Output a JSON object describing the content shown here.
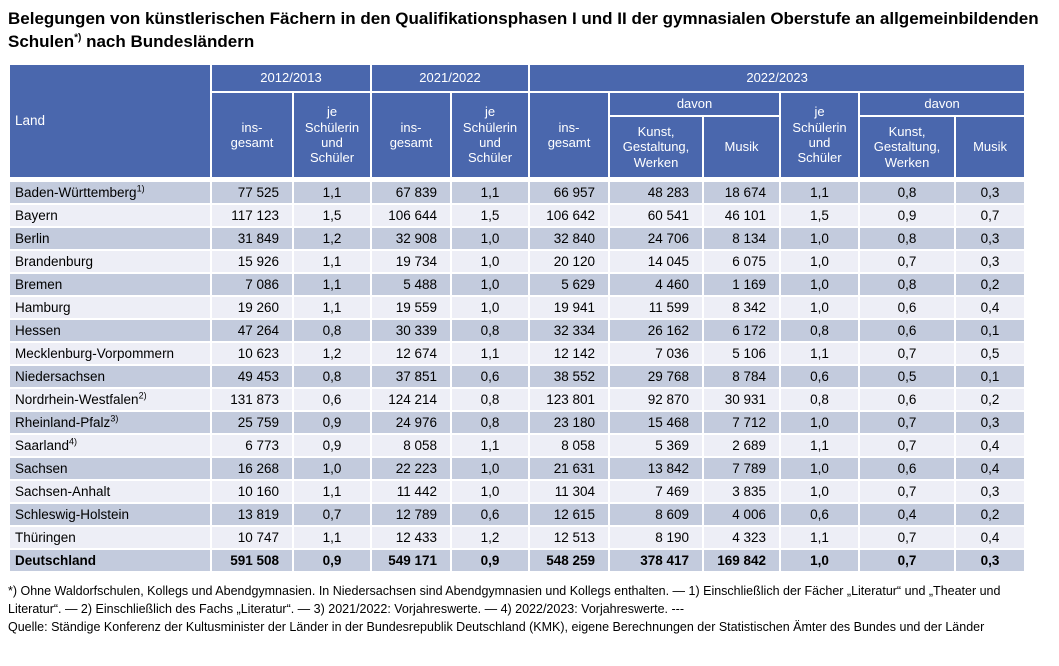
{
  "title": {
    "part1": "Belegungen von künstlerischen Fächern in den Qualifikationsphasen I und II der gymnasialen Oberstufe an allgemeinbildenden Schulen",
    "sup": "*)",
    "part2": " nach Bundesländern"
  },
  "colors": {
    "header_bg": "#4A67AD",
    "row_dark": "#C3CBDD",
    "row_light": "#EDEEF6",
    "header_text": "#FFFFFF"
  },
  "table": {
    "header": {
      "land": "Land",
      "y2012": "2012/2013",
      "y2021": "2021/2022",
      "y2022": "2022/2023",
      "insgesamt": "ins-\ngesamt",
      "je_schueler": "je\nSchülerin\nund\nSchüler",
      "davon": "davon",
      "kunst": "Kunst,\nGestaltung,\nWerken",
      "musik": "Musik"
    },
    "rows": [
      {
        "land": "Baden-Württemberg",
        "sup": "1)",
        "values": [
          "77 525",
          "1,1",
          "67 839",
          "1,1",
          "66 957",
          "48 283",
          "18 674",
          "1,1",
          "0,8",
          "0,3"
        ]
      },
      {
        "land": "Bayern",
        "sup": "",
        "values": [
          "117 123",
          "1,5",
          "106 644",
          "1,5",
          "106 642",
          "60 541",
          "46 101",
          "1,5",
          "0,9",
          "0,7"
        ]
      },
      {
        "land": "Berlin",
        "sup": "",
        "values": [
          "31 849",
          "1,2",
          "32 908",
          "1,0",
          "32 840",
          "24 706",
          "8 134",
          "1,0",
          "0,8",
          "0,3"
        ]
      },
      {
        "land": "Brandenburg",
        "sup": "",
        "values": [
          "15 926",
          "1,1",
          "19 734",
          "1,0",
          "20 120",
          "14 045",
          "6 075",
          "1,0",
          "0,7",
          "0,3"
        ]
      },
      {
        "land": "Bremen",
        "sup": "",
        "values": [
          "7 086",
          "1,1",
          "5 488",
          "1,0",
          "5 629",
          "4 460",
          "1 169",
          "1,0",
          "0,8",
          "0,2"
        ]
      },
      {
        "land": "Hamburg",
        "sup": "",
        "values": [
          "19 260",
          "1,1",
          "19 559",
          "1,0",
          "19 941",
          "11 599",
          "8 342",
          "1,0",
          "0,6",
          "0,4"
        ]
      },
      {
        "land": "Hessen",
        "sup": "",
        "values": [
          "47 264",
          "0,8",
          "30 339",
          "0,8",
          "32 334",
          "26 162",
          "6 172",
          "0,8",
          "0,6",
          "0,1"
        ]
      },
      {
        "land": "Mecklenburg-Vorpommern",
        "sup": "",
        "values": [
          "10 623",
          "1,2",
          "12 674",
          "1,1",
          "12 142",
          "7 036",
          "5 106",
          "1,1",
          "0,7",
          "0,5"
        ]
      },
      {
        "land": "Niedersachsen",
        "sup": "",
        "values": [
          "49 453",
          "0,8",
          "37 851",
          "0,6",
          "38 552",
          "29 768",
          "8 784",
          "0,6",
          "0,5",
          "0,1"
        ]
      },
      {
        "land": "Nordrhein-Westfalen",
        "sup": "2)",
        "values": [
          "131 873",
          "0,6",
          "124 214",
          "0,8",
          "123 801",
          "92 870",
          "30 931",
          "0,8",
          "0,6",
          "0,2"
        ]
      },
      {
        "land": "Rheinland-Pfalz",
        "sup": "3)",
        "values": [
          "25 759",
          "0,9",
          "24 976",
          "0,8",
          "23 180",
          "15 468",
          "7 712",
          "1,0",
          "0,7",
          "0,3"
        ]
      },
      {
        "land": "Saarland",
        "sup": "4)",
        "values": [
          "6 773",
          "0,9",
          "8 058",
          "1,1",
          "8 058",
          "5 369",
          "2 689",
          "1,1",
          "0,7",
          "0,4"
        ]
      },
      {
        "land": "Sachsen",
        "sup": "",
        "values": [
          "16 268",
          "1,0",
          "22 223",
          "1,0",
          "21 631",
          "13 842",
          "7 789",
          "1,0",
          "0,6",
          "0,4"
        ]
      },
      {
        "land": "Sachsen-Anhalt",
        "sup": "",
        "values": [
          "10 160",
          "1,1",
          "11 442",
          "1,0",
          "11 304",
          "7 469",
          "3 835",
          "1,0",
          "0,7",
          "0,3"
        ]
      },
      {
        "land": "Schleswig-Holstein",
        "sup": "",
        "values": [
          "13 819",
          "0,7",
          "12 789",
          "0,6",
          "12 615",
          "8 609",
          "4 006",
          "0,6",
          "0,4",
          "0,2"
        ]
      },
      {
        "land": "Thüringen",
        "sup": "",
        "values": [
          "10 747",
          "1,1",
          "12 433",
          "1,2",
          "12 513",
          "8 190",
          "4 323",
          "1,1",
          "0,7",
          "0,4"
        ]
      }
    ],
    "total_row": {
      "land": "Deutschland",
      "sup": "",
      "values": [
        "591 508",
        "0,9",
        "549 171",
        "0,9",
        "548 259",
        "378 417",
        "169 842",
        "1,0",
        "0,7",
        "0,3"
      ]
    }
  },
  "footnotes": {
    "notes": "*) Ohne Waldorfschulen, Kollegs und Abendgymnasien. In Niedersachsen sind Abendgymnasien und Kollegs enthalten. — 1) Einschließlich der Fächer „Literatur“ und „Theater und Literatur“. — 2) Einschließlich des Fachs „Literatur“. — 3) 2021/2022: Vorjahreswerte. — 4) 2022/2023: Vorjahreswerte. ---",
    "source": "Quelle: Ständige Konferenz der Kultusminister der Länder in der Bundesrepublik Deutschland (KMK), eigene Berechnungen der Statistischen Ämter des Bundes und der Länder"
  }
}
